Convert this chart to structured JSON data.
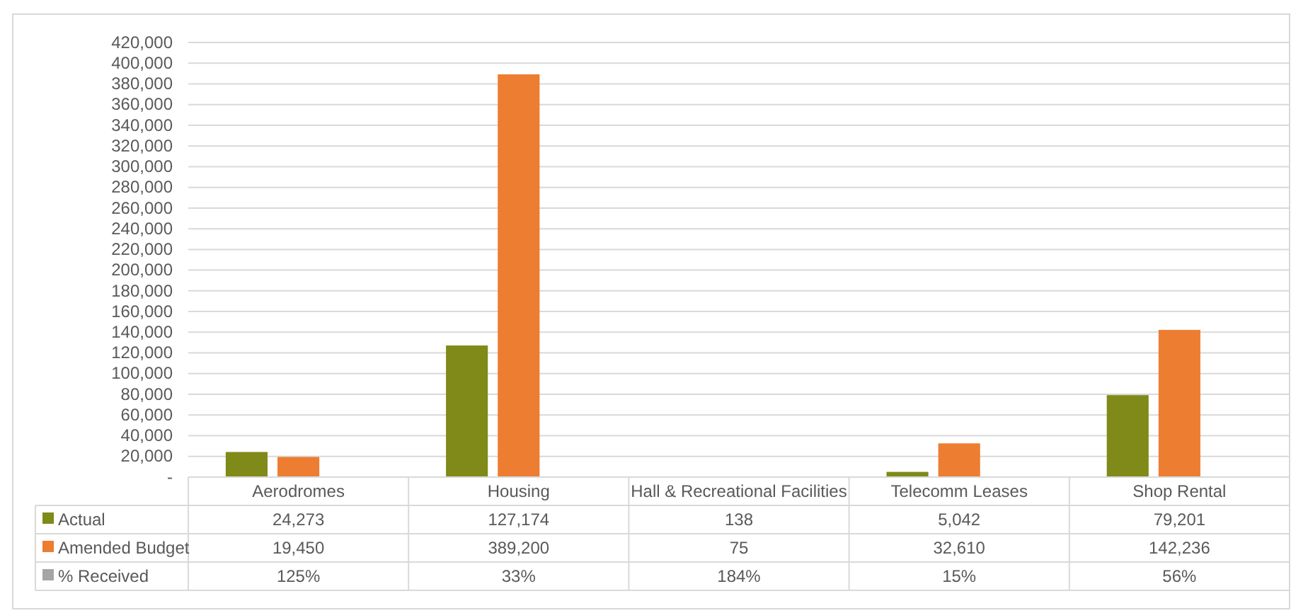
{
  "chart_data": {
    "type": "bar",
    "categories": [
      "Aerodromes",
      "Housing",
      "Hall & Recreational Facilities",
      "Telecomm Leases",
      "Shop Rental"
    ],
    "series": [
      {
        "name": "Actual",
        "color": "#7f8a18",
        "values": [
          24273,
          127174,
          138,
          5042,
          79201
        ],
        "value_labels": [
          "24,273",
          "127,174",
          "138",
          "5,042",
          "79,201"
        ]
      },
      {
        "name": "Amended Budget",
        "color": "#ed7d31",
        "values": [
          19450,
          389200,
          75,
          32610,
          142236
        ],
        "value_labels": [
          "19,450",
          "389,200",
          "75",
          "32,610",
          "142,236"
        ]
      },
      {
        "name": "% Received",
        "color": "#a5a5a5",
        "values": [
          1.25,
          0.33,
          1.84,
          0.15,
          0.56
        ],
        "value_labels": [
          "125%",
          "33%",
          "184%",
          "15%",
          "56%"
        ]
      }
    ],
    "ylim": [
      0,
      420000
    ],
    "yticks": [
      {
        "value": 0,
        "label": "-"
      },
      {
        "value": 20000,
        "label": "20,000"
      },
      {
        "value": 40000,
        "label": "40,000"
      },
      {
        "value": 60000,
        "label": "60,000"
      },
      {
        "value": 80000,
        "label": "80,000"
      },
      {
        "value": 100000,
        "label": "100,000"
      },
      {
        "value": 120000,
        "label": "120,000"
      },
      {
        "value": 140000,
        "label": "140,000"
      },
      {
        "value": 160000,
        "label": "160,000"
      },
      {
        "value": 180000,
        "label": "180,000"
      },
      {
        "value": 200000,
        "label": "200,000"
      },
      {
        "value": 220000,
        "label": "220,000"
      },
      {
        "value": 240000,
        "label": "240,000"
      },
      {
        "value": 260000,
        "label": "260,000"
      },
      {
        "value": 280000,
        "label": "280,000"
      },
      {
        "value": 300000,
        "label": "300,000"
      },
      {
        "value": 320000,
        "label": "320,000"
      },
      {
        "value": 340000,
        "label": "340,000"
      },
      {
        "value": 360000,
        "label": "360,000"
      },
      {
        "value": 380000,
        "label": "380,000"
      },
      {
        "value": 400000,
        "label": "400,000"
      },
      {
        "value": 420000,
        "label": "420,000"
      }
    ],
    "grid": "y",
    "legend": "bottom"
  }
}
